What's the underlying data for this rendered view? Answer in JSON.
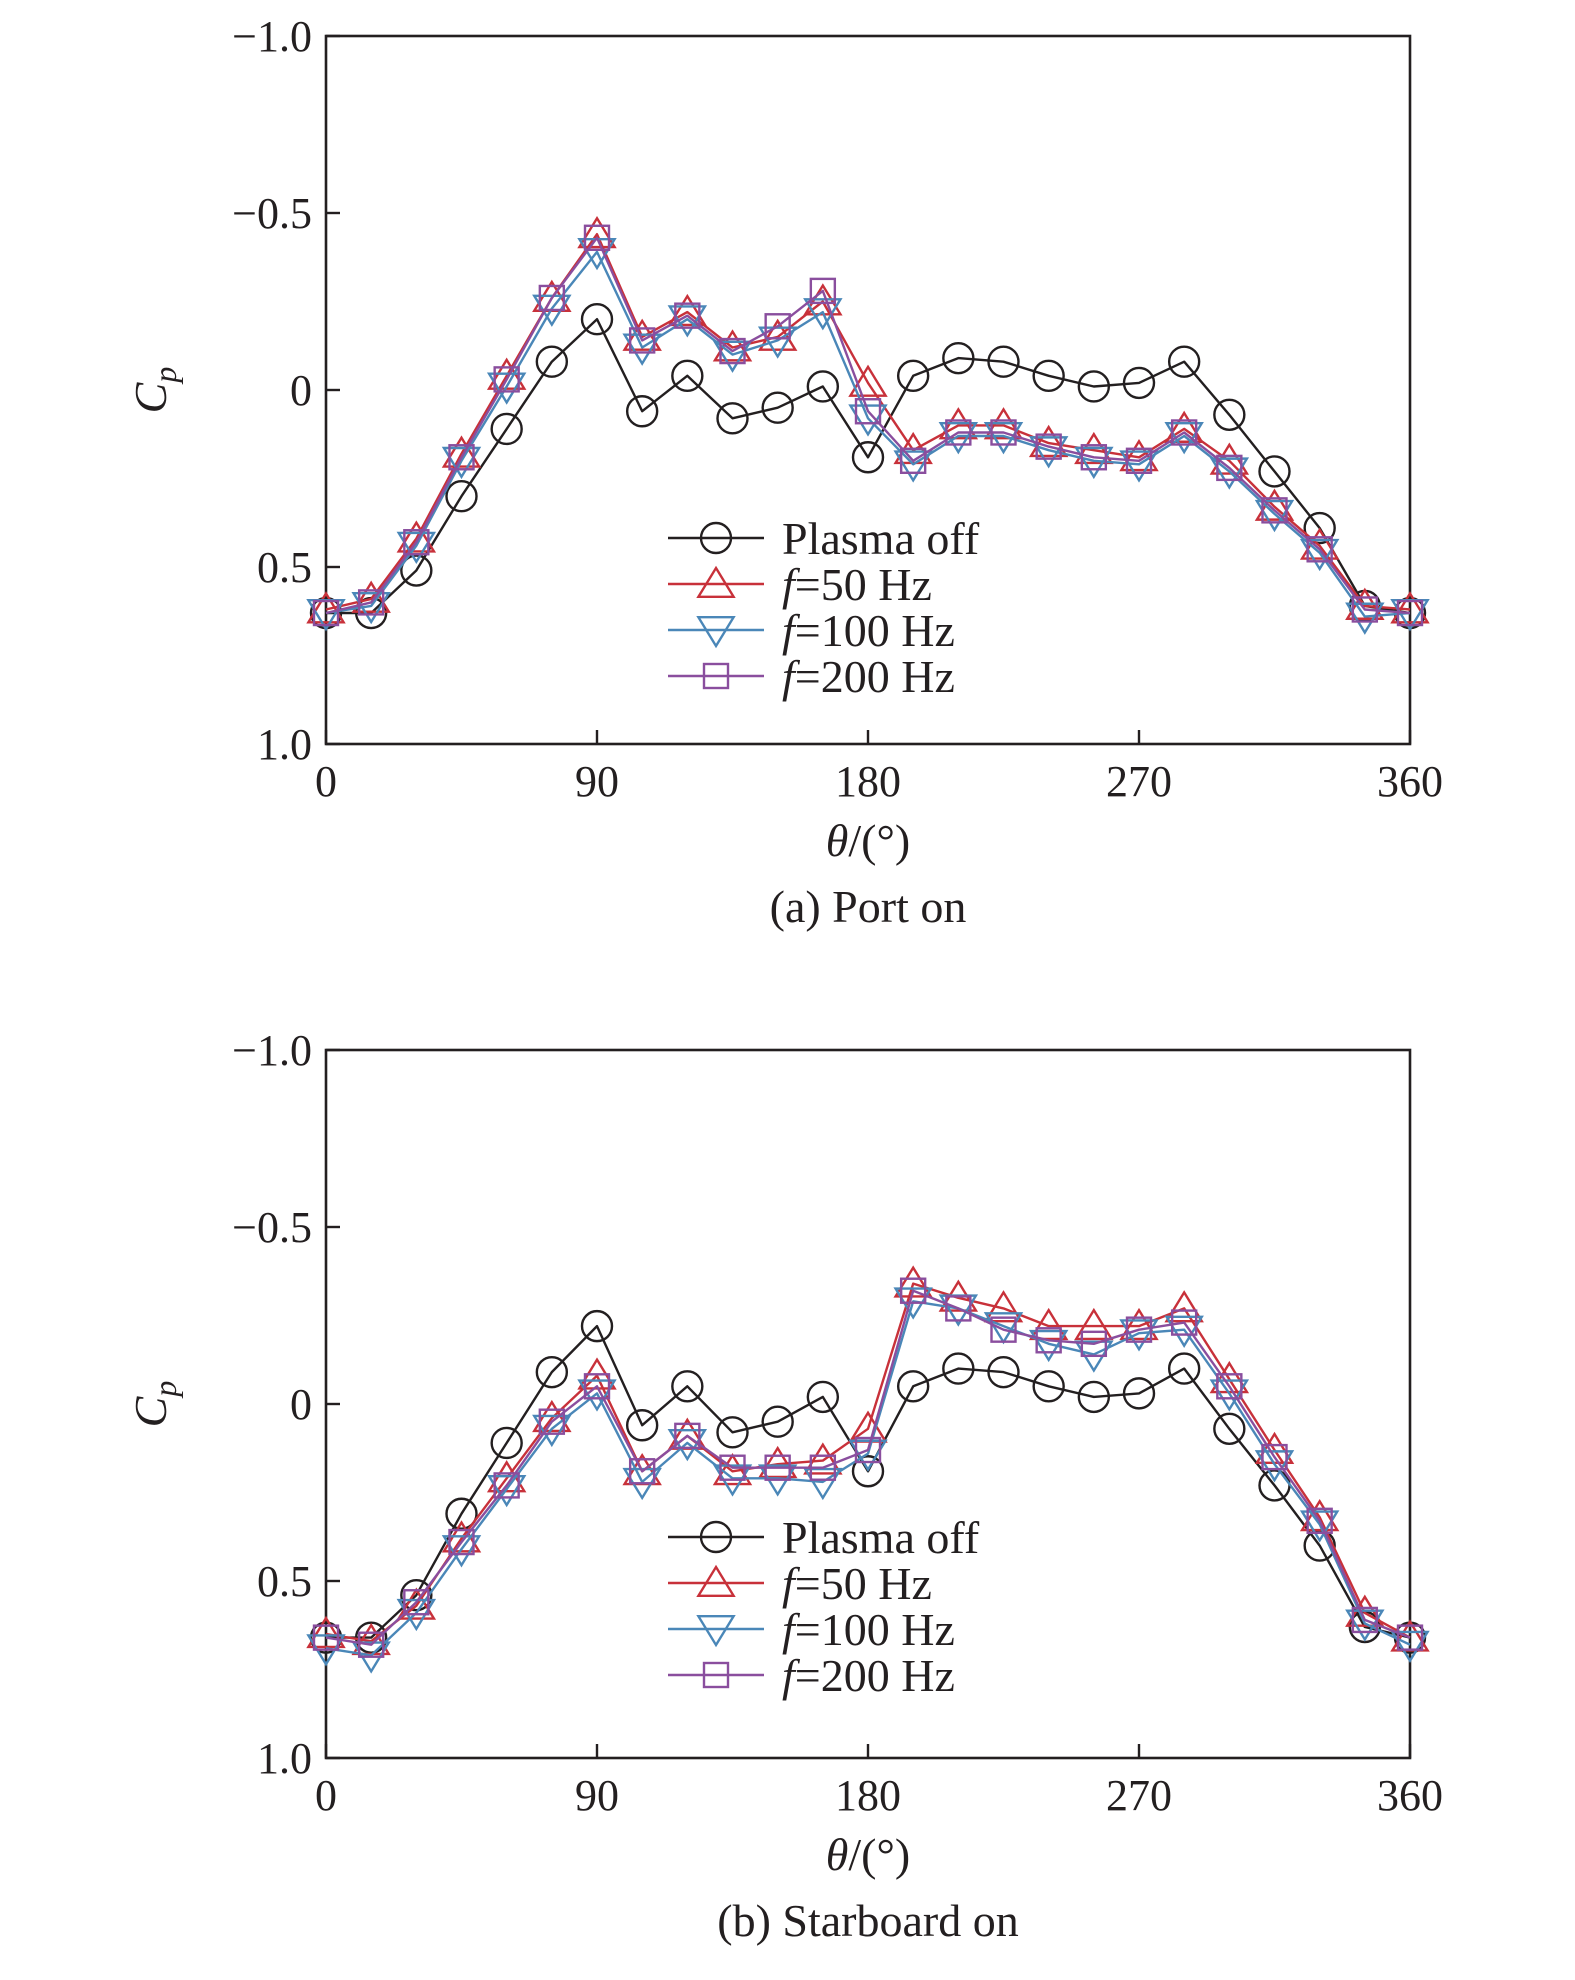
{
  "chart_data": [
    {
      "type": "line",
      "title": "(a) Port on",
      "xlabel": "θ/(°)",
      "ylabel": "Cp",
      "xlim": [
        0,
        360
      ],
      "ylim": [
        1.0,
        -1.0
      ],
      "y_inverted": true,
      "xticks": [
        0,
        90,
        180,
        270,
        360
      ],
      "xtick_labels": [
        "0",
        "90",
        "180",
        "270",
        "360"
      ],
      "yticks": [
        -1.0,
        -0.5,
        0,
        0.5,
        1.0
      ],
      "ytick_labels": [
        "−1.0",
        "−0.5",
        "0",
        "0.5",
        "1.0"
      ],
      "x": [
        0,
        15,
        30,
        45,
        60,
        75,
        90,
        105,
        120,
        135,
        150,
        165,
        180,
        195,
        210,
        225,
        240,
        255,
        270,
        285,
        300,
        315,
        330,
        345,
        360
      ],
      "series": [
        {
          "name": "Plasma off",
          "marker": "circle",
          "color": "#231f20",
          "values": [
            0.63,
            0.63,
            0.51,
            0.3,
            0.11,
            -0.08,
            -0.2,
            0.06,
            -0.04,
            0.08,
            0.05,
            -0.01,
            0.19,
            -0.04,
            -0.09,
            -0.08,
            -0.04,
            -0.01,
            -0.02,
            -0.08,
            0.07,
            0.23,
            0.39,
            0.61,
            0.63
          ]
        },
        {
          "name": "f=50 Hz",
          "marker": "triangle-up",
          "color": "#c8313a",
          "values": [
            0.62,
            0.59,
            0.42,
            0.18,
            -0.04,
            -0.26,
            -0.44,
            -0.15,
            -0.22,
            -0.12,
            -0.15,
            -0.25,
            -0.02,
            0.17,
            0.1,
            0.1,
            0.15,
            0.17,
            0.19,
            0.11,
            0.2,
            0.33,
            0.44,
            0.61,
            0.62
          ]
        },
        {
          "name": "f=100 Hz",
          "marker": "triangle-down",
          "color": "#4a87b8",
          "values": [
            0.63,
            0.61,
            0.44,
            0.2,
            -0.01,
            -0.23,
            -0.39,
            -0.12,
            -0.2,
            -0.1,
            -0.14,
            -0.22,
            0.08,
            0.21,
            0.13,
            0.13,
            0.17,
            0.2,
            0.21,
            0.13,
            0.23,
            0.35,
            0.46,
            0.64,
            0.63
          ]
        },
        {
          "name": "f=200 Hz",
          "marker": "square",
          "color": "#8a4e9e",
          "values": [
            0.63,
            0.6,
            0.43,
            0.19,
            -0.03,
            -0.26,
            -0.43,
            -0.14,
            -0.21,
            -0.11,
            -0.18,
            -0.28,
            0.06,
            0.2,
            0.12,
            0.12,
            0.16,
            0.19,
            0.2,
            0.12,
            0.22,
            0.34,
            0.45,
            0.62,
            0.63
          ]
        }
      ],
      "legend_position": "lower-center"
    },
    {
      "type": "line",
      "title": "(b) Starboard on",
      "xlabel": "θ/(°)",
      "ylabel": "Cp",
      "xlim": [
        0,
        360
      ],
      "ylim": [
        1.0,
        -1.0
      ],
      "y_inverted": true,
      "xticks": [
        0,
        90,
        180,
        270,
        360
      ],
      "xtick_labels": [
        "0",
        "90",
        "180",
        "270",
        "360"
      ],
      "yticks": [
        -1.0,
        -0.5,
        0,
        0.5,
        1.0
      ],
      "ytick_labels": [
        "−1.0",
        "−0.5",
        "0",
        "0.5",
        "1.0"
      ],
      "x": [
        0,
        15,
        30,
        45,
        60,
        75,
        90,
        105,
        120,
        135,
        150,
        165,
        180,
        195,
        210,
        225,
        240,
        255,
        270,
        285,
        300,
        315,
        330,
        345,
        360
      ],
      "series": [
        {
          "name": "Plasma off",
          "marker": "circle",
          "color": "#231f20",
          "values": [
            0.66,
            0.66,
            0.54,
            0.31,
            0.11,
            -0.09,
            -0.22,
            0.06,
            -0.05,
            0.08,
            0.05,
            -0.02,
            0.19,
            -0.05,
            -0.1,
            -0.09,
            -0.05,
            -0.02,
            -0.03,
            -0.1,
            0.07,
            0.23,
            0.4,
            0.63,
            0.66
          ]
        },
        {
          "name": "f=50 Hz",
          "marker": "triangle-up",
          "color": "#c8313a",
          "values": [
            0.65,
            0.67,
            0.57,
            0.38,
            0.21,
            0.04,
            -0.08,
            0.19,
            0.09,
            0.19,
            0.17,
            0.16,
            0.07,
            -0.34,
            -0.3,
            -0.27,
            -0.22,
            -0.22,
            -0.22,
            -0.27,
            -0.07,
            0.13,
            0.32,
            0.59,
            0.66
          ]
        },
        {
          "name": "f=100 Hz",
          "marker": "triangle-down",
          "color": "#4a87b8",
          "values": [
            0.69,
            0.71,
            0.59,
            0.41,
            0.24,
            0.07,
            -0.03,
            0.22,
            0.11,
            0.21,
            0.21,
            0.22,
            0.14,
            -0.29,
            -0.27,
            -0.22,
            -0.17,
            -0.14,
            -0.2,
            -0.21,
            -0.03,
            0.17,
            0.34,
            0.62,
            0.68
          ]
        },
        {
          "name": "f=200 Hz",
          "marker": "square",
          "color": "#8a4e9e",
          "values": [
            0.66,
            0.68,
            0.56,
            0.39,
            0.23,
            0.05,
            -0.05,
            0.19,
            0.09,
            0.18,
            0.18,
            0.18,
            0.13,
            -0.32,
            -0.27,
            -0.21,
            -0.18,
            -0.17,
            -0.21,
            -0.23,
            -0.05,
            0.15,
            0.33,
            0.61,
            0.66
          ]
        }
      ],
      "legend_position": "lower-center"
    }
  ]
}
